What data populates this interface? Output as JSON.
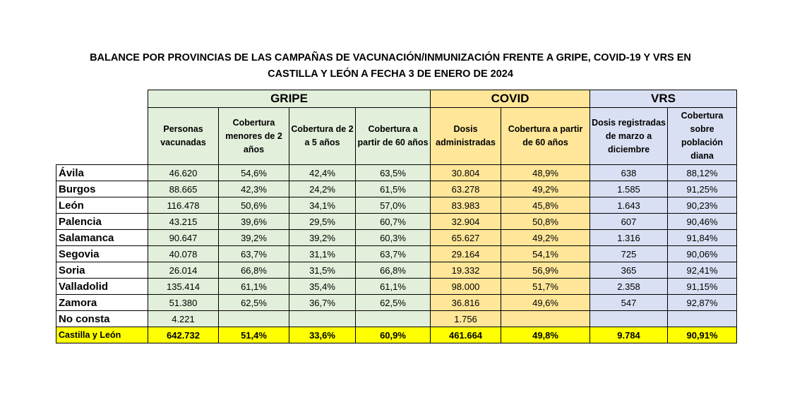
{
  "title": [
    "BALANCE POR PROVINCIAS DE LAS CAMPAÑAS DE VACUNACIÓN/INMUNIZACIÓN FRENTE A GRIPE, COVID-19 Y VRS EN",
    "CASTILLA Y LEÓN A FECHA 3 DE ENERO DE 2024"
  ],
  "table": {
    "groups": [
      {
        "label": "GRIPE",
        "span": 4
      },
      {
        "label": "COVID",
        "span": 2
      },
      {
        "label": "VRS",
        "span": 2
      }
    ],
    "headers": [
      "Personas vacunadas",
      "Cobertura menores de 2 años",
      "Cobertura de 2 a 5 años",
      "Cobertura a partir de 60 años",
      "Dosis administradas",
      "Cobertura a partir de 60 años",
      "Dosis registradas de marzo a diciembre",
      "Cobertura sobre población diana"
    ],
    "rows": [
      [
        "Ávila",
        "46.620",
        "54,6%",
        "42,4%",
        "63,5%",
        "30.804",
        "48,9%",
        "638",
        "88,12%"
      ],
      [
        "Burgos",
        "88.665",
        "42,3%",
        "24,2%",
        "61,5%",
        "63.278",
        "49,2%",
        "1.585",
        "91,25%"
      ],
      [
        "León",
        "116.478",
        "50,6%",
        "34,1%",
        "57,0%",
        "83.983",
        "45,8%",
        "1.643",
        "90,23%"
      ],
      [
        "Palencia",
        "43.215",
        "39,6%",
        "29,5%",
        "60,7%",
        "32.904",
        "50,8%",
        "607",
        "90,46%"
      ],
      [
        "Salamanca",
        "90.647",
        "39,2%",
        "39,2%",
        "60,3%",
        "65.627",
        "49,2%",
        "1.316",
        "91,84%"
      ],
      [
        "Segovia",
        "40.078",
        "63,7%",
        "31,1%",
        "63,7%",
        "29.164",
        "54,1%",
        "725",
        "90,06%"
      ],
      [
        "Soria",
        "26.014",
        "66,8%",
        "31,5%",
        "66,8%",
        "19.332",
        "56,9%",
        "365",
        "92,41%"
      ],
      [
        "Valladolid",
        "135.414",
        "61,1%",
        "35,4%",
        "61,1%",
        "98.000",
        "51,7%",
        "2.358",
        "91,15%"
      ],
      [
        "Zamora",
        "51.380",
        "62,5%",
        "36,7%",
        "62,5%",
        "36.816",
        "49,6%",
        "547",
        "92,87%"
      ],
      [
        "No consta",
        "4.221",
        null,
        null,
        null,
        "1.756",
        null,
        null,
        null
      ]
    ],
    "total": [
      "Castilla y León",
      "642.732",
      "51,4%",
      "33,6%",
      "60,9%",
      "461.664",
      "49,8%",
      "9.784",
      "90,91%"
    ]
  }
}
